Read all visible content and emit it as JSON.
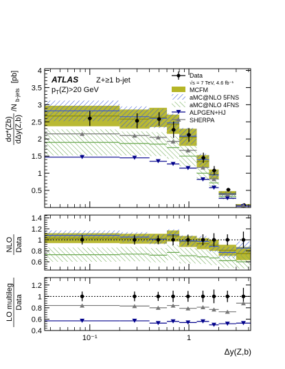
{
  "chart_data": {
    "type": "line",
    "annotation": {
      "experiment": "ATLAS",
      "selection": "Z+≥1 b-jet",
      "cut": "p_T(Z)>20 GeV",
      "data_label": "Data",
      "data_sub": "√s = 7 TeV, 4.6 fb⁻¹"
    },
    "xlabel": "Δy(Z,b)",
    "x_scale": "log",
    "xlim": [
      0.035,
      4.2
    ],
    "x_tick_labels": [
      "10⁻¹",
      "1"
    ],
    "colors": {
      "data": "#000000",
      "mcfm": "#a8a800",
      "amc5": "#3b5bd5",
      "amc4": "#6aa84f",
      "alpgen": "#00008b",
      "sherpa": "#777777"
    },
    "bins": [
      {
        "lo": 0.035,
        "hi": 0.2
      },
      {
        "lo": 0.2,
        "hi": 0.4
      },
      {
        "lo": 0.4,
        "hi": 0.6
      },
      {
        "lo": 0.6,
        "hi": 0.8
      },
      {
        "lo": 0.8,
        "hi": 1.2
      },
      {
        "lo": 1.2,
        "hi": 1.6
      },
      {
        "lo": 1.6,
        "hi": 2.0
      },
      {
        "lo": 2.0,
        "hi": 3.0
      },
      {
        "lo": 3.0,
        "hi": 4.2
      }
    ],
    "panels": [
      {
        "name": "main",
        "ylabel": "dσ*(Zb)/dΔy(Z,b) / N_b-jets [pb]",
        "ylim": [
          0,
          4.05
        ],
        "yticks": [
          "0.5",
          "1",
          "1.5",
          "2",
          "2.5",
          "3",
          "3.5",
          "4"
        ],
        "series": [
          {
            "name": "Data",
            "x": [
              0.1,
              0.3,
              0.5,
              0.7,
              1.0,
              1.4,
              1.8,
              2.5,
              3.6
            ],
            "values": [
              2.6,
              2.53,
              2.58,
              2.27,
              2.12,
              1.45,
              1.08,
              0.52,
              0.07
            ],
            "errors": [
              0.22,
              0.22,
              0.2,
              0.24,
              0.2,
              0.15,
              0.13,
              0.05,
              0.03
            ]
          },
          {
            "name": "MCFM",
            "values": [
              2.67,
              2.58,
              2.63,
              2.43,
              2.05,
              1.35,
              0.97,
              0.42,
              0.07
            ],
            "band": [
              0.3,
              0.28,
              0.28,
              0.28,
              0.25,
              0.18,
              0.14,
              0.06,
              0.03
            ]
          },
          {
            "name": "aMC@NLO 5FNS",
            "values": [
              2.82,
              2.65,
              2.6,
              2.47,
              2.08,
              1.4,
              0.95,
              0.4,
              0.06
            ],
            "band": [
              0.3,
              0.3,
              0.28,
              0.27,
              0.24,
              0.17,
              0.13,
              0.07,
              0.03
            ]
          },
          {
            "name": "aMC@NLO 4FNS",
            "values": [
              1.9,
              1.87,
              1.85,
              1.75,
              1.5,
              1.0,
              0.72,
              0.32,
              0.05
            ],
            "band": [
              0.38,
              0.35,
              0.35,
              0.33,
              0.3,
              0.2,
              0.15,
              0.08,
              0.02
            ]
          },
          {
            "name": "ALPGEN+HJ",
            "values": [
              1.47,
              1.45,
              1.35,
              1.27,
              1.15,
              0.82,
              0.58,
              0.27,
              0.04
            ]
          },
          {
            "name": "SHERPA",
            "values": [
              2.15,
              2.1,
              2.05,
              1.93,
              1.67,
              1.17,
              0.83,
              0.38,
              0.06
            ]
          }
        ]
      },
      {
        "name": "nlo_ratio",
        "ylabel": "NLO / Data",
        "ylim": [
          0.45,
          1.45
        ],
        "yticks": [
          "0.6",
          "0.8",
          "1",
          "1.2",
          "1.4"
        ],
        "series": [
          {
            "name": "Data",
            "values": [
              1,
              1,
              1,
              1,
              1,
              1,
              1,
              1,
              1
            ],
            "errors": [
              0.085,
              0.085,
              0.08,
              0.1,
              0.095,
              0.1,
              0.12,
              0.1,
              0.15
            ]
          },
          {
            "name": "MCFM",
            "values": [
              1.03,
              1.02,
              1.02,
              1.07,
              0.97,
              0.93,
              0.9,
              0.81,
              0.75
            ],
            "band": [
              0.09,
              0.09,
              0.09,
              0.1,
              0.1,
              0.1,
              0.1,
              0.1,
              0.12
            ]
          },
          {
            "name": "aMC@NLO 5FNS",
            "values": [
              1.08,
              1.05,
              1.01,
              1.09,
              0.98,
              0.97,
              0.88,
              0.77,
              0.85
            ],
            "band": [
              0.09,
              0.09,
              0.09,
              0.1,
              0.1,
              0.1,
              0.1,
              0.1,
              0.12
            ]
          },
          {
            "name": "aMC@NLO 4FNS",
            "values": [
              0.73,
              0.74,
              0.72,
              0.77,
              0.71,
              0.69,
              0.67,
              0.62,
              0.6
            ],
            "band": [
              0.13,
              0.13,
              0.13,
              0.14,
              0.14,
              0.13,
              0.13,
              0.13,
              0.12
            ]
          }
        ]
      },
      {
        "name": "lo_ratio",
        "ylabel": "LO multileg / Data",
        "ylim": [
          0.4,
          1.33
        ],
        "yticks": [
          "0.4",
          "0.6",
          "0.8",
          "1",
          "1.2"
        ],
        "series": [
          {
            "name": "Data",
            "values": [
              1,
              1,
              1,
              1,
              1,
              1,
              1,
              1,
              1
            ],
            "errors": [
              0.085,
              0.085,
              0.08,
              0.1,
              0.095,
              0.1,
              0.12,
              0.1,
              0.15
            ]
          },
          {
            "name": "SHERPA",
            "values": [
              0.84,
              0.83,
              0.8,
              0.84,
              0.79,
              0.81,
              0.77,
              0.73,
              0.88
            ]
          },
          {
            "name": "ALPGEN+HJ",
            "values": [
              0.57,
              0.57,
              0.53,
              0.56,
              0.54,
              0.56,
              0.5,
              0.52,
              0.53
            ]
          }
        ]
      }
    ]
  }
}
